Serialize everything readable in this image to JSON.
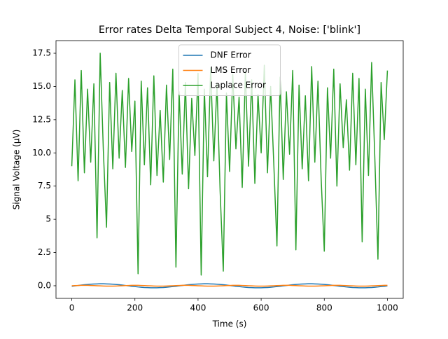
{
  "chart_data": {
    "type": "line",
    "title": "Error rates Delta Temporal Subject 4, Noise: ['blink']",
    "xlabel": "Time (s)",
    "ylabel": "Signal Voltage (μV)",
    "x": [
      0,
      10,
      20,
      30,
      40,
      50,
      60,
      70,
      80,
      90,
      100,
      110,
      120,
      130,
      140,
      150,
      160,
      170,
      180,
      190,
      200,
      210,
      220,
      230,
      240,
      250,
      260,
      270,
      280,
      290,
      300,
      310,
      320,
      330,
      340,
      350,
      360,
      370,
      380,
      390,
      400,
      410,
      420,
      430,
      440,
      450,
      460,
      470,
      480,
      490,
      500,
      510,
      520,
      530,
      540,
      550,
      560,
      570,
      580,
      590,
      600,
      610,
      620,
      630,
      640,
      650,
      660,
      670,
      680,
      690,
      700,
      710,
      720,
      730,
      740,
      750,
      760,
      770,
      780,
      790,
      800,
      810,
      820,
      830,
      840,
      850,
      860,
      870,
      880,
      890,
      900,
      910,
      920,
      930,
      940,
      950,
      960,
      970,
      980,
      990,
      1000
    ],
    "series": [
      {
        "name": "DNF Error",
        "color": "#1f77b4",
        "values": [
          -0.04,
          -0.01,
          0.02,
          0.05,
          0.08,
          0.1,
          0.12,
          0.13,
          0.14,
          0.15,
          0.15,
          0.14,
          0.13,
          0.12,
          0.1,
          0.08,
          0.05,
          0.02,
          -0.01,
          -0.04,
          -0.06,
          -0.09,
          -0.11,
          -0.13,
          -0.14,
          -0.15,
          -0.15,
          -0.15,
          -0.14,
          -0.13,
          -0.11,
          -0.09,
          -0.06,
          -0.04,
          -0.01,
          0.02,
          0.05,
          0.08,
          0.1,
          0.12,
          0.13,
          0.14,
          0.15,
          0.15,
          0.14,
          0.13,
          0.12,
          0.1,
          0.08,
          0.05,
          0.02,
          -0.01,
          -0.04,
          -0.06,
          -0.09,
          -0.11,
          -0.13,
          -0.14,
          -0.15,
          -0.15,
          -0.15,
          -0.14,
          -0.13,
          -0.11,
          -0.09,
          -0.06,
          -0.04,
          -0.01,
          0.02,
          0.05,
          0.08,
          0.1,
          0.12,
          0.13,
          0.14,
          0.15,
          0.15,
          0.14,
          0.13,
          0.12,
          0.1,
          0.08,
          0.05,
          0.02,
          -0.01,
          -0.04,
          -0.06,
          -0.09,
          -0.11,
          -0.13,
          -0.14,
          -0.15,
          -0.15,
          -0.15,
          -0.14,
          -0.13,
          -0.11,
          -0.09,
          -0.06,
          -0.04,
          -0.01
        ]
      },
      {
        "name": "LMS Error",
        "color": "#ff7f0e",
        "values": [
          0,
          0.01,
          0.02,
          0.03,
          0.03,
          0.03,
          0.02,
          0.01,
          0,
          -0.01,
          -0.02,
          -0.03,
          -0.03,
          -0.03,
          -0.02,
          -0.01,
          0,
          0.01,
          0.02,
          0.03,
          0.03,
          0.03,
          0.02,
          0.01,
          0,
          -0.01,
          -0.02,
          -0.03,
          -0.03,
          -0.03,
          -0.02,
          -0.01,
          0,
          0.01,
          0.02,
          0.03,
          0.03,
          0.03,
          0.02,
          0.01,
          0,
          -0.01,
          -0.02,
          -0.03,
          -0.03,
          -0.03,
          -0.02,
          -0.01,
          0,
          0.01,
          0.02,
          0.03,
          0.03,
          0.03,
          0.02,
          0.01,
          0,
          -0.01,
          -0.02,
          -0.03,
          -0.03,
          -0.03,
          -0.02,
          -0.01,
          0,
          0.01,
          0.02,
          0.03,
          0.03,
          0.03,
          0.02,
          0.01,
          0,
          -0.01,
          -0.02,
          -0.03,
          -0.03,
          -0.03,
          -0.02,
          -0.01,
          0,
          0.01,
          0.02,
          0.03,
          0.03,
          0.03,
          0.02,
          0.01,
          0,
          -0.01,
          -0.02,
          -0.03,
          -0.03,
          -0.03,
          -0.02,
          -0.01,
          0,
          0.01,
          0.02,
          0.03,
          0.03
        ]
      },
      {
        "name": "Laplace Error",
        "color": "#2ca02c",
        "values": [
          9.0,
          15.5,
          7.9,
          16.2,
          8.5,
          14.8,
          9.3,
          15.2,
          3.6,
          17.5,
          10.2,
          4.4,
          15.3,
          8.8,
          16.0,
          9.6,
          14.7,
          8.9,
          15.6,
          10.1,
          13.9,
          0.9,
          15.4,
          9.1,
          14.9,
          7.6,
          15.8,
          8.3,
          13.2,
          7.8,
          15.1,
          9.5,
          16.3,
          1.4,
          14.6,
          8.4,
          15.3,
          7.3,
          14.1,
          9.8,
          16.0,
          0.8,
          14.8,
          8.2,
          16.4,
          9.4,
          15.2,
          7.1,
          1.1,
          14.5,
          8.6,
          15.9,
          10.3,
          14.2,
          7.4,
          16.1,
          9.0,
          15.5,
          7.7,
          14.4,
          10.0,
          16.6,
          8.5,
          15.0,
          9.2,
          3.0,
          15.7,
          8.0,
          14.6,
          9.9,
          16.2,
          2.7,
          15.1,
          8.8,
          14.3,
          7.9,
          16.5,
          9.3,
          15.4,
          8.1,
          2.6,
          14.9,
          9.6,
          16.3,
          7.5,
          15.2,
          10.4,
          14.0,
          8.7,
          16.0,
          9.1,
          15.6,
          3.3,
          14.8,
          8.3,
          16.8,
          9.7,
          2.0,
          15.3,
          11.0,
          16.2
        ]
      }
    ],
    "xlim": [
      -50,
      1050
    ],
    "xticks": [
      0,
      200,
      400,
      600,
      800,
      1000
    ],
    "ylim": [
      -0.95,
      18.45
    ],
    "yticks": [
      {
        "value": 0,
        "label": "0.0"
      },
      2.5,
      5.0,
      7.5,
      {
        "value": 10,
        "label": "10.0"
      },
      12.5,
      {
        "value": 15,
        "label": "15.0"
      },
      17.5
    ],
    "legend": "upper center"
  }
}
